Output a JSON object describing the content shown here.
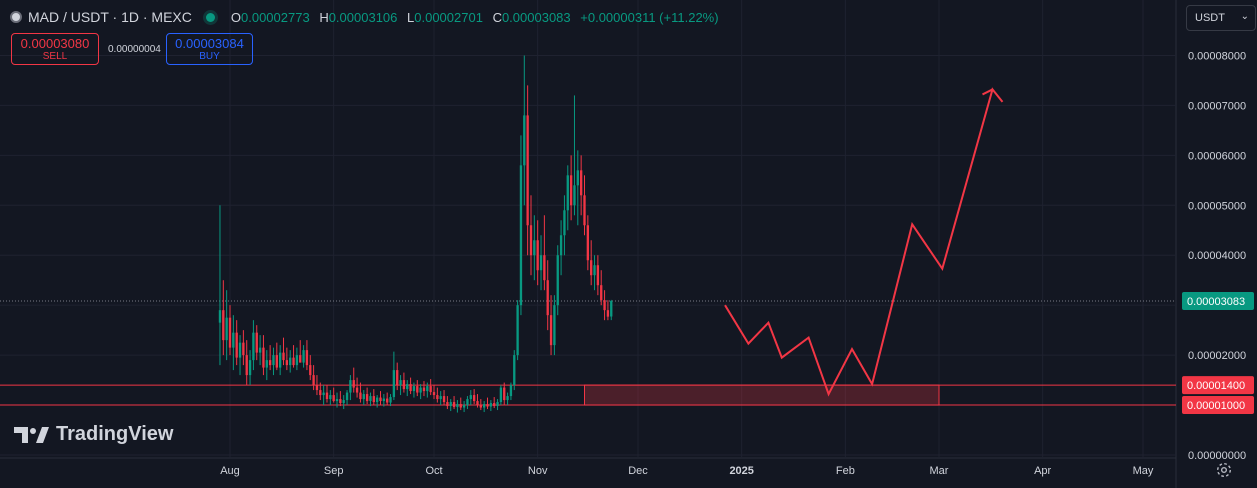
{
  "header": {
    "symbol": "MAD / USDT · 1D · MEXC",
    "open_label": "O",
    "open": "0.00002773",
    "high_label": "H",
    "high": "0.00003106",
    "low_label": "L",
    "low": "0.00002701",
    "close_label": "C",
    "close": "0.00003083",
    "change": "+0.00000311 (+11.22%)"
  },
  "trade": {
    "sell_price": "0.00003080",
    "sell_label": "SELL",
    "spread": "0.00000004",
    "buy_price": "0.00003084",
    "buy_label": "BUY"
  },
  "currency": "USDT",
  "branding": "TradingView",
  "colors": {
    "up": "#089981",
    "down": "#f23645",
    "background": "#131722",
    "grid": "#1f2230",
    "zone": "#f23645"
  },
  "chart_data": {
    "type": "candlestick",
    "x_ticks": [
      "Aug",
      "Sep",
      "Oct",
      "Nov",
      "Dec",
      "2025",
      "Feb",
      "Mar",
      "Apr",
      "May"
    ],
    "y_ticks": [
      "0.00000000",
      "0.00001000",
      "0.00002000",
      "0.00003000",
      "0.00004000",
      "0.00005000",
      "0.00006000",
      "0.00007000",
      "0.00008000"
    ],
    "ylim": [
      0,
      8.55e-05
    ],
    "last_price_label": "0.00003083",
    "last_price": 3.083e-05,
    "levels": [
      {
        "label": "0.00001400",
        "value": 1.4e-05
      },
      {
        "label": "0.00001000",
        "value": 1e-05
      }
    ],
    "zone": {
      "from": "2024-11-15",
      "to": "2025-03-01",
      "low": 1e-05,
      "high": 1.4e-05
    },
    "drawn_path": [
      [
        "2024-12-27",
        3e-05
      ],
      [
        "2025-01-03",
        2.23e-05
      ],
      [
        "2025-01-09",
        2.65e-05
      ],
      [
        "2025-01-13",
        1.95e-05
      ],
      [
        "2025-01-21",
        2.35e-05
      ],
      [
        "2025-01-27",
        1.22e-05
      ],
      [
        "2025-02-03",
        2.12e-05
      ],
      [
        "2025-02-09",
        1.42e-05
      ],
      [
        "2025-02-21",
        4.62e-05
      ],
      [
        "2025-03-02",
        3.73e-05
      ],
      [
        "2025-03-17",
        7.32e-05
      ],
      [
        "2025-03-20",
        7.07e-05
      ]
    ],
    "series_start": "2024-07-29",
    "candles": [
      [
        2.65e-05,
        5e-05,
        1.8e-05,
        2.9e-05
      ],
      [
        2.9e-05,
        3.5e-05,
        2e-05,
        2.3e-05
      ],
      [
        2.3e-05,
        3.3e-05,
        1.9e-05,
        2.75e-05
      ],
      [
        2.75e-05,
        3e-05,
        2e-05,
        2.15e-05
      ],
      [
        2.15e-05,
        2.8e-05,
        1.7e-05,
        2.45e-05
      ],
      [
        2.45e-05,
        2.7e-05,
        1.8e-05,
        1.95e-05
      ],
      [
        1.95e-05,
        2.4e-05,
        1.6e-05,
        2.25e-05
      ],
      [
        2.25e-05,
        2.5e-05,
        1.8e-05,
        2e-05
      ],
      [
        2e-05,
        2.3e-05,
        1.4e-05,
        1.6e-05
      ],
      [
        1.6e-05,
        2.1e-05,
        1.4e-05,
        1.9e-05
      ],
      [
        1.9e-05,
        2.7e-05,
        1.7e-05,
        2.45e-05
      ],
      [
        2.45e-05,
        2.6e-05,
        1.9e-05,
        2.05e-05
      ],
      [
        2.05e-05,
        2.4e-05,
        1.8e-05,
        2.15e-05
      ],
      [
        2.15e-05,
        2.4e-05,
        1.6e-05,
        1.75e-05
      ],
      [
        1.75e-05,
        2.1e-05,
        1.5e-05,
        1.9e-05
      ],
      [
        1.9e-05,
        2.2e-05,
        1.7e-05,
        1.8e-05
      ],
      [
        1.8e-05,
        2.15e-05,
        1.6e-05,
        2e-05
      ],
      [
        2e-05,
        2.25e-05,
        1.7e-05,
        1.75e-05
      ],
      [
        1.75e-05,
        2.2e-05,
        1.6e-05,
        2.05e-05
      ],
      [
        2.05e-05,
        2.35e-05,
        1.8e-05,
        1.9e-05
      ],
      [
        1.9e-05,
        2.15e-05,
        1.7e-05,
        1.8e-05
      ],
      [
        1.8e-05,
        2.1e-05,
        1.65e-05,
        1.95e-05
      ],
      [
        1.95e-05,
        2.2e-05,
        1.75e-05,
        1.8e-05
      ],
      [
        1.8e-05,
        2.15e-05,
        1.7e-05,
        2e-05
      ],
      [
        2e-05,
        2.3e-05,
        1.85e-05,
        1.85e-05
      ],
      [
        1.85e-05,
        2.2e-05,
        1.75e-05,
        2.1e-05
      ],
      [
        2.1e-05,
        2.3e-05,
        1.7e-05,
        1.8e-05
      ],
      [
        1.8e-05,
        2e-05,
        1.5e-05,
        1.6e-05
      ],
      [
        1.6e-05,
        1.8e-05,
        1.3e-05,
        1.4e-05
      ],
      [
        1.4e-05,
        1.6e-05,
        1.2e-05,
        1.3e-05
      ],
      [
        1.3e-05,
        1.45e-05,
        1.1e-05,
        1.2e-05
      ],
      [
        1.2e-05,
        1.4e-05,
        1e-05,
        1.25e-05
      ],
      [
        1.25e-05,
        1.4e-05,
        1.05e-05,
        1.12e-05
      ],
      [
        1.12e-05,
        1.3e-05,
        1e-05,
        1.2e-05
      ],
      [
        1.2e-05,
        1.35e-05,
        1.05e-05,
        1.08e-05
      ],
      [
        1.08e-05,
        1.25e-05,
        9.5e-06,
        1.12e-05
      ],
      [
        1.12e-05,
        1.28e-05,
        9.8e-06,
        1.04e-05
      ],
      [
        1.04e-05,
        1.2e-05,
        9.2e-06,
        1.1e-05
      ],
      [
        1.1e-05,
        1.3e-05,
        1e-05,
        1.25e-05
      ],
      [
        1.25e-05,
        1.6e-05,
        1.1e-05,
        1.5e-05
      ],
      [
        1.5e-05,
        1.75e-05,
        1.25e-05,
        1.35e-05
      ],
      [
        1.35e-05,
        1.55e-05,
        1.15e-05,
        1.25e-05
      ],
      [
        1.25e-05,
        1.45e-05,
        1.05e-05,
        1.12e-05
      ],
      [
        1.12e-05,
        1.3e-05,
        1e-05,
        1.22e-05
      ],
      [
        1.22e-05,
        1.35e-05,
        1.02e-05,
        1.08e-05
      ],
      [
        1.08e-05,
        1.25e-05,
        9.8e-06,
        1.18e-05
      ],
      [
        1.18e-05,
        1.32e-05,
        1e-05,
        1.06e-05
      ],
      [
        1.06e-05,
        1.2e-05,
        9.5e-06,
        1.15e-05
      ],
      [
        1.15e-05,
        1.28e-05,
        1e-05,
        1.08e-05
      ],
      [
        1.08e-05,
        1.22e-05,
        9.7e-06,
        1.13e-05
      ],
      [
        1.13e-05,
        1.25e-05,
        1e-05,
        1.05e-05
      ],
      [
        1.05e-05,
        1.22e-05,
        9.8e-06,
        1.16e-05
      ],
      [
        1.16e-05,
        2.07e-05,
        1.1e-05,
        1.7e-05
      ],
      [
        1.7e-05,
        1.85e-05,
        1.3e-05,
        1.4e-05
      ],
      [
        1.4e-05,
        1.6e-05,
        1.2e-05,
        1.5e-05
      ],
      [
        1.5e-05,
        1.65e-05,
        1.25e-05,
        1.32e-05
      ],
      [
        1.32e-05,
        1.5e-05,
        1.18e-05,
        1.42e-05
      ],
      [
        1.42e-05,
        1.55e-05,
        1.22e-05,
        1.28e-05
      ],
      [
        1.28e-05,
        1.45e-05,
        1.15e-05,
        1.38e-05
      ],
      [
        1.38e-05,
        1.5e-05,
        1.18e-05,
        1.25e-05
      ],
      [
        1.25e-05,
        1.42e-05,
        1.12e-05,
        1.35e-05
      ],
      [
        1.35e-05,
        1.48e-05,
        1.18e-05,
        1.28e-05
      ],
      [
        1.28e-05,
        1.45e-05,
        1.15e-05,
        1.38e-05
      ],
      [
        1.38e-05,
        1.52e-05,
        1.2e-05,
        1.26e-05
      ],
      [
        1.26e-05,
        1.4e-05,
        1.12e-05,
        1.2e-05
      ],
      [
        1.2e-05,
        1.35e-05,
        1.05e-05,
        1.12e-05
      ],
      [
        1.12e-05,
        1.28e-05,
        1e-05,
        1.18e-05
      ],
      [
        1.18e-05,
        1.3e-05,
        1e-05,
        1.06e-05
      ],
      [
        1.06e-05,
        1.18e-05,
        9.2e-06,
        9.8e-06
      ],
      [
        9.8e-06,
        1.12e-05,
        8.8e-06,
        1.06e-05
      ],
      [
        1.06e-05,
        1.18e-05,
        9.2e-06,
        9.6e-06
      ],
      [
        9.6e-06,
        1.1e-05,
        8.5e-06,
        1.02e-05
      ],
      [
        1.02e-05,
        1.15e-05,
        9e-06,
        9.5e-06
      ],
      [
        9.5e-06,
        1.08e-05,
        8.6e-06,
        1e-05
      ],
      [
        1e-05,
        1.18e-05,
        9.2e-06,
        1.12e-05
      ],
      [
        1.12e-05,
        1.3e-05,
        1e-05,
        1.2e-05
      ],
      [
        1.2e-05,
        1.32e-05,
        1.02e-05,
        1.08e-05
      ],
      [
        1.08e-05,
        1.22e-05,
        9.5e-06,
        1e-05
      ],
      [
        1e-05,
        1.12e-05,
        9e-06,
        9.5e-06
      ],
      [
        9.5e-06,
        1.08e-05,
        8.6e-06,
        1.02e-05
      ],
      [
        1.02e-05,
        1.15e-05,
        9.2e-06,
        9.7e-06
      ],
      [
        9.7e-06,
        1.1e-05,
        8.8e-06,
        1.04e-05
      ],
      [
        1.04e-05,
        1.16e-05,
        9.4e-06,
        9.8e-06
      ],
      [
        9.8e-06,
        1.12e-05,
        9e-06,
        1.06e-05
      ],
      [
        1.06e-05,
        1.4e-05,
        1e-05,
        1.35e-05
      ],
      [
        1.35e-05,
        1.45e-05,
        1e-05,
        1.1e-05
      ],
      [
        1.1e-05,
        1.25e-05,
        1e-05,
        1.18e-05
      ],
      [
        1.18e-05,
        1.45e-05,
        1.1e-05,
        1.4e-05
      ],
      [
        1.4e-05,
        2.1e-05,
        1.3e-05,
        2e-05
      ],
      [
        2e-05,
        3.1e-05,
        1.9e-05,
        3e-05
      ],
      [
        3e-05,
        6.4e-05,
        2.8e-05,
        5.8e-05
      ],
      [
        5.8e-05,
        8e-05,
        5e-05,
        6.8e-05
      ],
      [
        6.8e-05,
        7.4e-05,
        4e-05,
        4.6e-05
      ],
      [
        4.6e-05,
        5.2e-05,
        3.6e-05,
        4e-05
      ],
      [
        4e-05,
        4.8e-05,
        3.5e-05,
        4.3e-05
      ],
      [
        4.3e-05,
        4.7e-05,
        3.4e-05,
        3.7e-05
      ],
      [
        3.7e-05,
        4.4e-05,
        3.3e-05,
        4e-05
      ],
      [
        4e-05,
        4.8e-05,
        3.3e-05,
        3.5e-05
      ],
      [
        3.5e-05,
        3.9e-05,
        2.5e-05,
        2.8e-05
      ],
      [
        2.8e-05,
        3.2e-05,
        2e-05,
        2.2e-05
      ],
      [
        2.2e-05,
        3.2e-05,
        2e-05,
        3e-05
      ],
      [
        3e-05,
        4.2e-05,
        2.8e-05,
        4e-05
      ],
      [
        4e-05,
        4.7e-05,
        3.6e-05,
        4.4e-05
      ],
      [
        4.4e-05,
        5.2e-05,
        4e-05,
        4.9e-05
      ],
      [
        4.9e-05,
        5.8e-05,
        4.5e-05,
        5.6e-05
      ],
      [
        5.6e-05,
        6e-05,
        4.7e-05,
        5e-05
      ],
      [
        5e-05,
        7.2e-05,
        4.8e-05,
        5.4e-05
      ],
      [
        5.4e-05,
        6.1e-05,
        4.6e-05,
        5.7e-05
      ],
      [
        5.7e-05,
        6e-05,
        4.8e-05,
        5.2e-05
      ],
      [
        5.2e-05,
        5.6e-05,
        4.4e-05,
        4.6e-05
      ],
      [
        4.6e-05,
        4.8e-05,
        3.7e-05,
        3.9e-05
      ],
      [
        3.9e-05,
        4.3e-05,
        3.4e-05,
        3.6e-05
      ],
      [
        3.6e-05,
        4e-05,
        3.3e-05,
        3.8e-05
      ],
      [
        3.8e-05,
        4e-05,
        3.2e-05,
        3.4e-05
      ],
      [
        3.4e-05,
        3.7e-05,
        3e-05,
        3.1e-05
      ],
      [
        3.1e-05,
        3.3e-05,
        2.7e-05,
        2.9e-05
      ],
      [
        2.9e-05,
        3.1e-05,
        2.7e-05,
        2.77e-05
      ],
      [
        2.773e-05,
        3.106e-05,
        2.701e-05,
        3.083e-05
      ]
    ]
  }
}
